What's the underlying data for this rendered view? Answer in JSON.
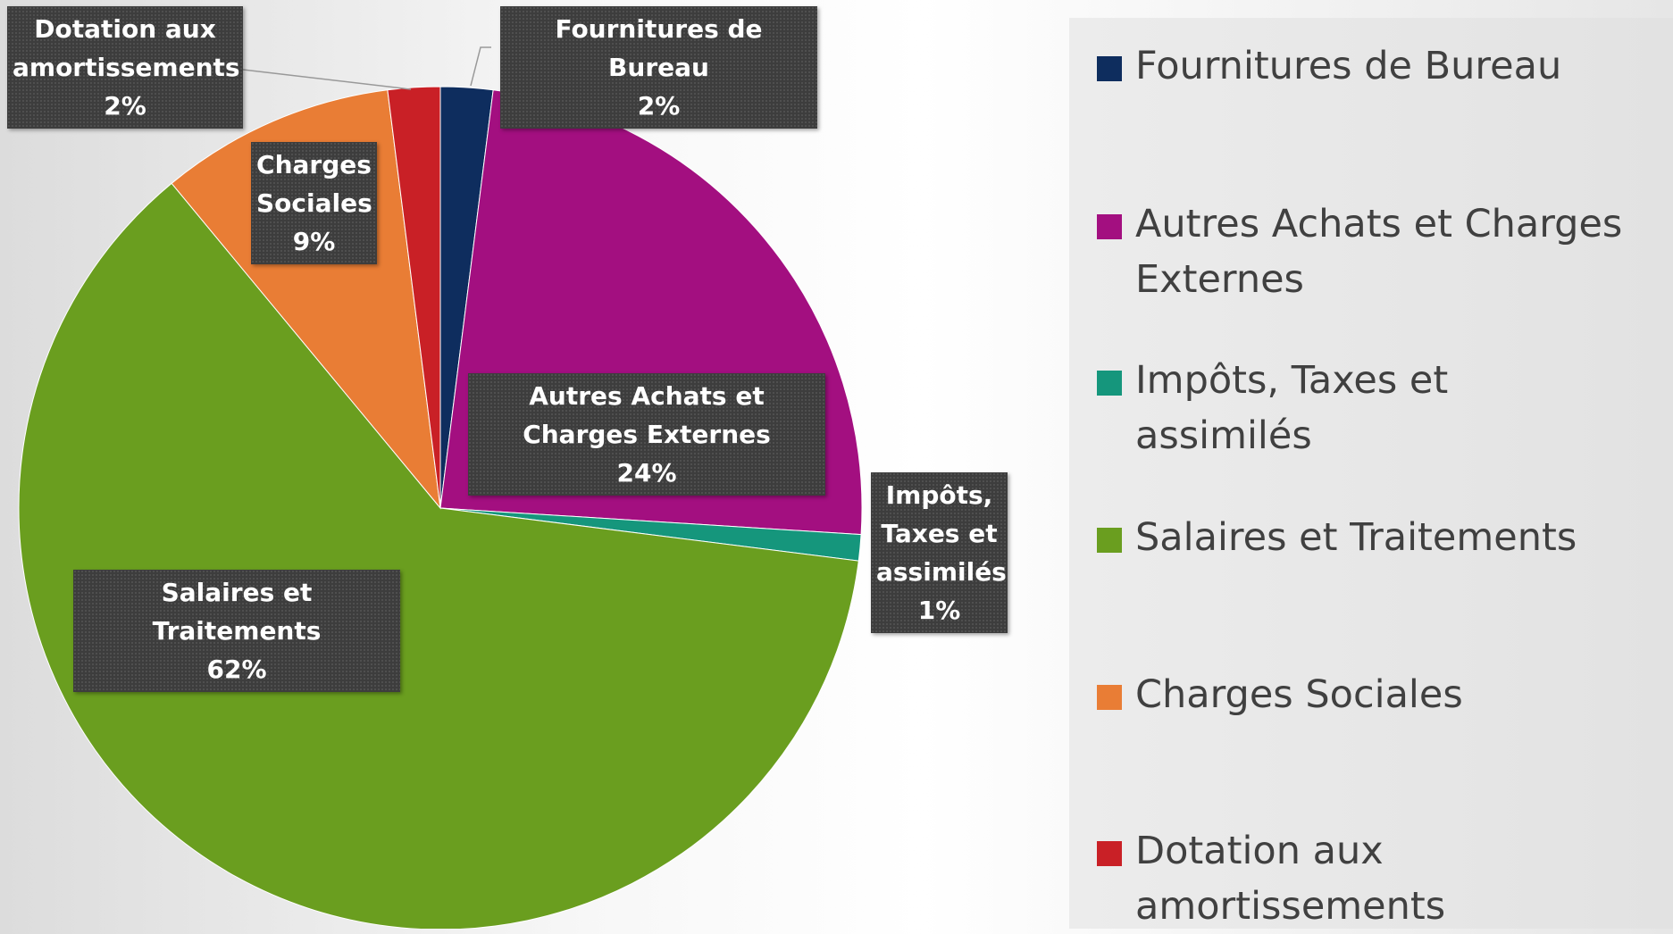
{
  "chart_data": {
    "type": "pie",
    "categories": [
      "Fournitures de Bureau",
      "Autres Achats et Charges Externes",
      "Impôts, Taxes et assimilés",
      "Salaires et Traitements",
      "Charges Sociales",
      "Dotation aux amortissements"
    ],
    "values": [
      2,
      24,
      1,
      62,
      9,
      2
    ],
    "value_labels": [
      "2%",
      "24%",
      "1%",
      "62%",
      "9%",
      "2%"
    ],
    "colors": [
      "#0e2d5e",
      "#a30f80",
      "#15967c",
      "#6a9e1f",
      "#e97d35",
      "#c92026"
    ],
    "legend": "right"
  }
}
